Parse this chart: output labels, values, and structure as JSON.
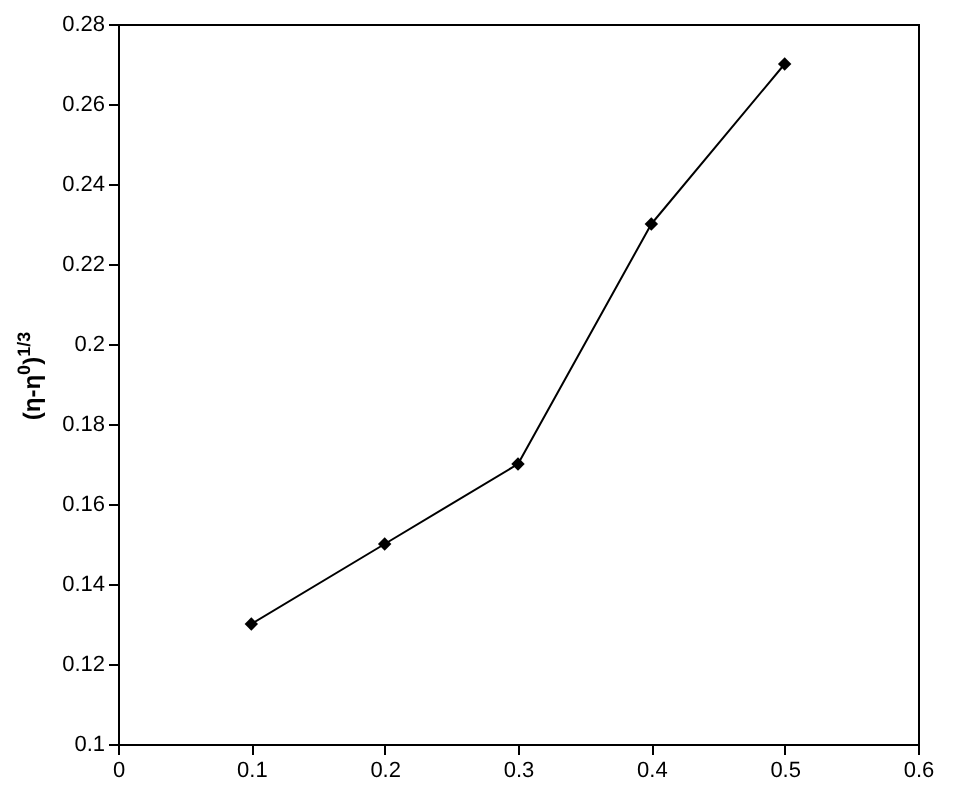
{
  "chart_data": {
    "type": "line",
    "ylabel": "(η-η$^{0}$)$^{1/3}$",
    "x": [
      0.1,
      0.2,
      0.3,
      0.4,
      0.5
    ],
    "series": [
      {
        "color": "#000000",
        "values": [
          0.13,
          0.15,
          0.17,
          0.23,
          0.27
        ]
      }
    ],
    "xlim": [
      0,
      0.6
    ],
    "xticks": [
      0,
      0.1,
      0.2,
      0.3,
      0.4,
      0.5,
      0.6
    ],
    "ylim": [
      0.1,
      0.28
    ],
    "yticks": [
      0.1,
      0.12,
      0.14,
      0.16,
      0.18,
      0.2,
      0.22,
      0.24,
      0.26,
      0.28
    ],
    "grid": false,
    "legend": false,
    "marker": "diamond",
    "line_style": "solid"
  }
}
